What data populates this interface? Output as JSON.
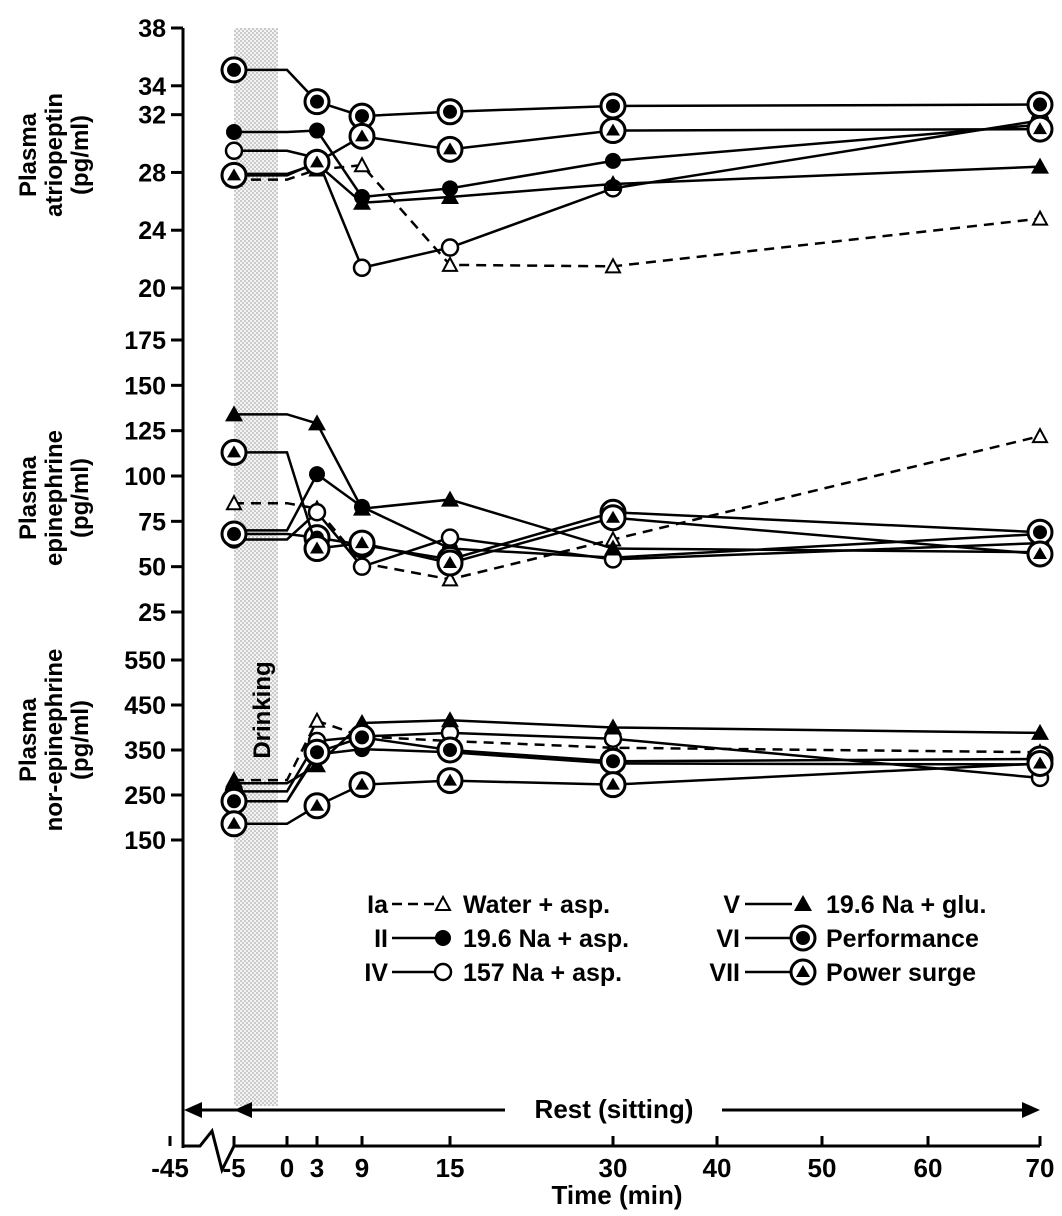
{
  "chart_data": [
    {
      "panel": "atriopeptin",
      "type": "line",
      "ylabel_lines": [
        "Plasma",
        "atriopeptin",
        "(pg/ml)"
      ],
      "ylim": [
        20,
        38
      ],
      "yticks": [
        20,
        24,
        28,
        32,
        34,
        38
      ],
      "series": [
        {
          "group": "Ia",
          "values": [
            27.5,
            28.2,
            28.5,
            21.6,
            21.5,
            24.8
          ]
        },
        {
          "group": "II",
          "values": [
            30.8,
            30.9,
            26.3,
            26.9,
            28.8,
            31.3
          ]
        },
        {
          "group": "IV",
          "values": [
            29.5,
            29.0,
            21.4,
            22.8,
            26.9,
            31.6
          ]
        },
        {
          "group": "V",
          "values": [
            27.9,
            28.6,
            25.9,
            26.3,
            27.2,
            28.4
          ]
        },
        {
          "group": "VI",
          "values": [
            35.1,
            32.9,
            31.9,
            32.2,
            32.6,
            32.7
          ]
        },
        {
          "group": "VII",
          "values": [
            27.8,
            28.7,
            30.5,
            29.6,
            30.9,
            31.0
          ]
        }
      ]
    },
    {
      "panel": "epinephrine",
      "type": "line",
      "ylabel_lines": [
        "Plasma",
        "epinephrine",
        "(pg/ml)"
      ],
      "ylim": [
        25,
        175
      ],
      "yticks": [
        25,
        50,
        75,
        100,
        125,
        150,
        175
      ],
      "series": [
        {
          "group": "Ia",
          "values": [
            85,
            82,
            52,
            43,
            65,
            122
          ]
        },
        {
          "group": "II",
          "values": [
            70,
            101,
            83,
            60,
            55,
            68
          ]
        },
        {
          "group": "IV",
          "values": [
            65,
            80,
            50,
            66,
            54,
            63
          ]
        },
        {
          "group": "V",
          "values": [
            134,
            129,
            82,
            87,
            60,
            58
          ]
        },
        {
          "group": "VI",
          "values": [
            68,
            66,
            62,
            54,
            80,
            69
          ]
        },
        {
          "group": "VII",
          "values": [
            113,
            60,
            63,
            52,
            77,
            57
          ]
        }
      ]
    },
    {
      "panel": "norepinephrine",
      "type": "line",
      "ylabel_lines": [
        "Plasma",
        "nor-epinephrine",
        "(pg/ml)"
      ],
      "ylim": [
        150,
        550
      ],
      "yticks": [
        150,
        250,
        350,
        450,
        550
      ],
      "series": [
        {
          "group": "Ia",
          "values": [
            283,
            415,
            380,
            370,
            355,
            345
          ]
        },
        {
          "group": "II",
          "values": [
            236,
            340,
            352,
            345,
            320,
            318
          ]
        },
        {
          "group": "IV",
          "values": [
            258,
            370,
            380,
            388,
            375,
            288
          ]
        },
        {
          "group": "V",
          "values": [
            276,
            316,
            410,
            416,
            400,
            388
          ]
        },
        {
          "group": "VI",
          "values": [
            236,
            345,
            378,
            350,
            325,
            330
          ]
        },
        {
          "group": "VII",
          "values": [
            186,
            226,
            273,
            282,
            273,
            320
          ]
        }
      ]
    }
  ],
  "x_values": [
    -5,
    3,
    9,
    15,
    30,
    70
  ],
  "x_tick_labels": [
    "-45",
    "-5",
    "0",
    "3",
    "9",
    "15",
    "30",
    "40",
    "50",
    "60",
    "70"
  ],
  "xlabel": "Time (min)",
  "drinking_label": "Drinking",
  "rest_label": "Rest (sitting)",
  "legend": [
    {
      "group": "Ia",
      "label": "Water + asp.",
      "line": "dashed",
      "marker": "open-triangle",
      "column": "left"
    },
    {
      "group": "II",
      "label": "19.6 Na + asp.",
      "line": "solid",
      "marker": "filled-circle",
      "column": "left"
    },
    {
      "group": "IV",
      "label": "157 Na + asp.",
      "line": "solid",
      "marker": "open-circle",
      "column": "left"
    },
    {
      "group": "V",
      "label": "19.6 Na + glu.",
      "line": "solid",
      "marker": "filled-triangle",
      "column": "right"
    },
    {
      "group": "VI",
      "label": "Performance",
      "line": "solid",
      "marker": "circled-dot",
      "column": "right"
    },
    {
      "group": "VII",
      "label": "Power surge",
      "line": "solid",
      "marker": "circled-triangle",
      "column": "right"
    }
  ],
  "colors": {
    "ink": "#000000",
    "drinking_band": "#e0e0e0"
  }
}
